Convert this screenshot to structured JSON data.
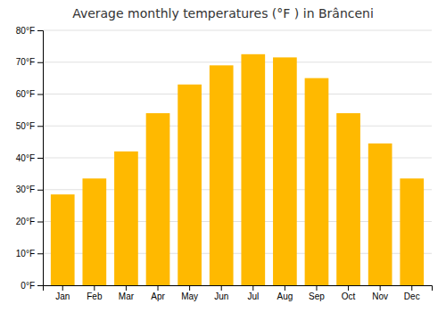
{
  "chart_data": {
    "type": "bar",
    "title": "Average monthly temperatures (°F ) in Brânceni",
    "categories": [
      "Jan",
      "Feb",
      "Mar",
      "Apr",
      "May",
      "Jun",
      "Jul",
      "Aug",
      "Sep",
      "Oct",
      "Nov",
      "Dec"
    ],
    "values": [
      28.5,
      33.5,
      42.0,
      54.0,
      63.0,
      69.0,
      72.5,
      71.5,
      65.0,
      54.0,
      44.5,
      33.5
    ],
    "color": "#FFB900",
    "ylim": [
      0,
      80
    ],
    "yticks": [
      {
        "value": 0,
        "label": "0°F"
      },
      {
        "value": 10,
        "label": "10°F"
      },
      {
        "value": 20,
        "label": "20°F"
      },
      {
        "value": 30,
        "label": "30°F"
      },
      {
        "value": 40,
        "label": "40°F"
      },
      {
        "value": 50,
        "label": "50°F"
      },
      {
        "value": 60,
        "label": "60°F"
      },
      {
        "value": 70,
        "label": "70°F"
      },
      {
        "value": 80,
        "label": "80°F"
      }
    ],
    "grid": true
  }
}
